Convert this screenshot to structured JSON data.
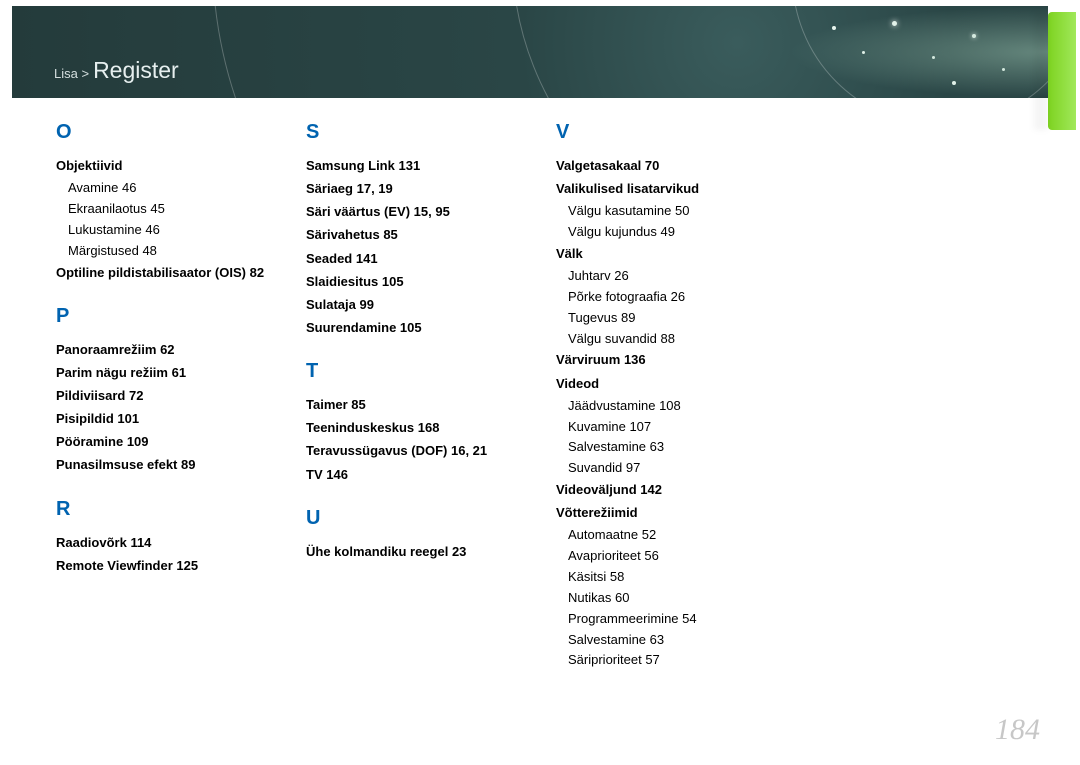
{
  "header": {
    "breadcrumb_pre": "Lisa >",
    "breadcrumb_title": "Register",
    "bg_color_start": "#3a5c5c",
    "bg_color_end": "#243b3b",
    "accent_color": "#7ed321"
  },
  "page_number": "184",
  "columns": [
    {
      "sections": [
        {
          "letter": "O",
          "items": [
            {
              "bold": "Objektiivid",
              "page": "",
              "subs": [
                {
                  "t": "Avamine",
                  "p": "46"
                },
                {
                  "t": "Ekraanilaotus",
                  "p": "45"
                },
                {
                  "t": "Lukustamine",
                  "p": "46"
                },
                {
                  "t": "Märgistused",
                  "p": "48"
                }
              ]
            },
            {
              "bold": "Optiline pildistabilisaator (OIS)",
              "page": "82",
              "subs": []
            }
          ]
        },
        {
          "letter": "P",
          "items": [
            {
              "bold": "Panoraamrežiim",
              "page": "62",
              "subs": []
            },
            {
              "bold": "Parim nägu režiim",
              "page": "61",
              "subs": []
            },
            {
              "bold": "Pildiviisard",
              "page": "72",
              "subs": []
            },
            {
              "bold": "Pisipildid",
              "page": "101",
              "subs": []
            },
            {
              "bold": "Pööramine",
              "page": "109",
              "subs": []
            },
            {
              "bold": "Punasilmsuse efekt",
              "page": "89",
              "subs": []
            }
          ]
        },
        {
          "letter": "R",
          "items": [
            {
              "bold": "Raadiovõrk",
              "page": "114",
              "subs": []
            },
            {
              "bold": "Remote Viewfinder",
              "page": "125",
              "subs": []
            }
          ]
        }
      ]
    },
    {
      "sections": [
        {
          "letter": "S",
          "items": [
            {
              "bold": "Samsung Link",
              "page": "131",
              "subs": []
            },
            {
              "bold": "Säriaeg",
              "page": "17,  19",
              "subs": []
            },
            {
              "bold": "Säri väärtus (EV)",
              "page": "15,  95",
              "subs": []
            },
            {
              "bold": "Särivahetus",
              "page": "85",
              "subs": []
            },
            {
              "bold": "Seaded",
              "page": "141",
              "subs": []
            },
            {
              "bold": "Slaidiesitus",
              "page": "105",
              "subs": []
            },
            {
              "bold": "Sulataja",
              "page": "99",
              "subs": []
            },
            {
              "bold": "Suurendamine",
              "page": "105",
              "subs": []
            }
          ]
        },
        {
          "letter": "T",
          "items": [
            {
              "bold": "Taimer",
              "page": "85",
              "subs": []
            },
            {
              "bold": "Teeninduskeskus",
              "page": "168",
              "subs": []
            },
            {
              "bold": "Teravussügavus (DOF)",
              "page": "16,  21",
              "subs": []
            },
            {
              "bold": "TV",
              "page": "146",
              "subs": []
            }
          ]
        },
        {
          "letter": "U",
          "items": [
            {
              "bold": "Ühe kolmandiku reegel",
              "page": "23",
              "subs": []
            }
          ]
        }
      ]
    },
    {
      "sections": [
        {
          "letter": "V",
          "items": [
            {
              "bold": "Valgetasakaal",
              "page": "70",
              "subs": []
            },
            {
              "bold": "Valikulised lisatarvikud",
              "page": "",
              "subs": [
                {
                  "t": "Välgu kasutamine",
                  "p": "50"
                },
                {
                  "t": "Välgu kujundus",
                  "p": "49"
                }
              ]
            },
            {
              "bold": "Välk",
              "page": "",
              "subs": [
                {
                  "t": "Juhtarv",
                  "p": "26"
                },
                {
                  "t": "Põrke fotograafia",
                  "p": "26"
                },
                {
                  "t": "Tugevus",
                  "p": "89"
                },
                {
                  "t": "Välgu suvandid",
                  "p": "88"
                }
              ]
            },
            {
              "bold": "Värviruum",
              "page": "136",
              "subs": []
            },
            {
              "bold": "Videod",
              "page": "",
              "subs": [
                {
                  "t": "Jäädvustamine",
                  "p": "108"
                },
                {
                  "t": "Kuvamine",
                  "p": "107"
                },
                {
                  "t": "Salvestamine",
                  "p": "63"
                },
                {
                  "t": "Suvandid",
                  "p": "97"
                }
              ]
            },
            {
              "bold": "Videoväljund",
              "page": "142",
              "subs": []
            },
            {
              "bold": "Võtterežiimid",
              "page": "",
              "subs": [
                {
                  "t": "Automaatne",
                  "p": "52"
                },
                {
                  "t": "Avaprioriteet",
                  "p": "56"
                },
                {
                  "t": "Käsitsi",
                  "p": "58"
                },
                {
                  "t": "Nutikas",
                  "p": "60"
                },
                {
                  "t": "Programmeerimine",
                  "p": "54"
                },
                {
                  "t": "Salvestamine",
                  "p": "63"
                },
                {
                  "t": "Säriprioriteet",
                  "p": "57"
                }
              ]
            }
          ]
        }
      ]
    }
  ]
}
